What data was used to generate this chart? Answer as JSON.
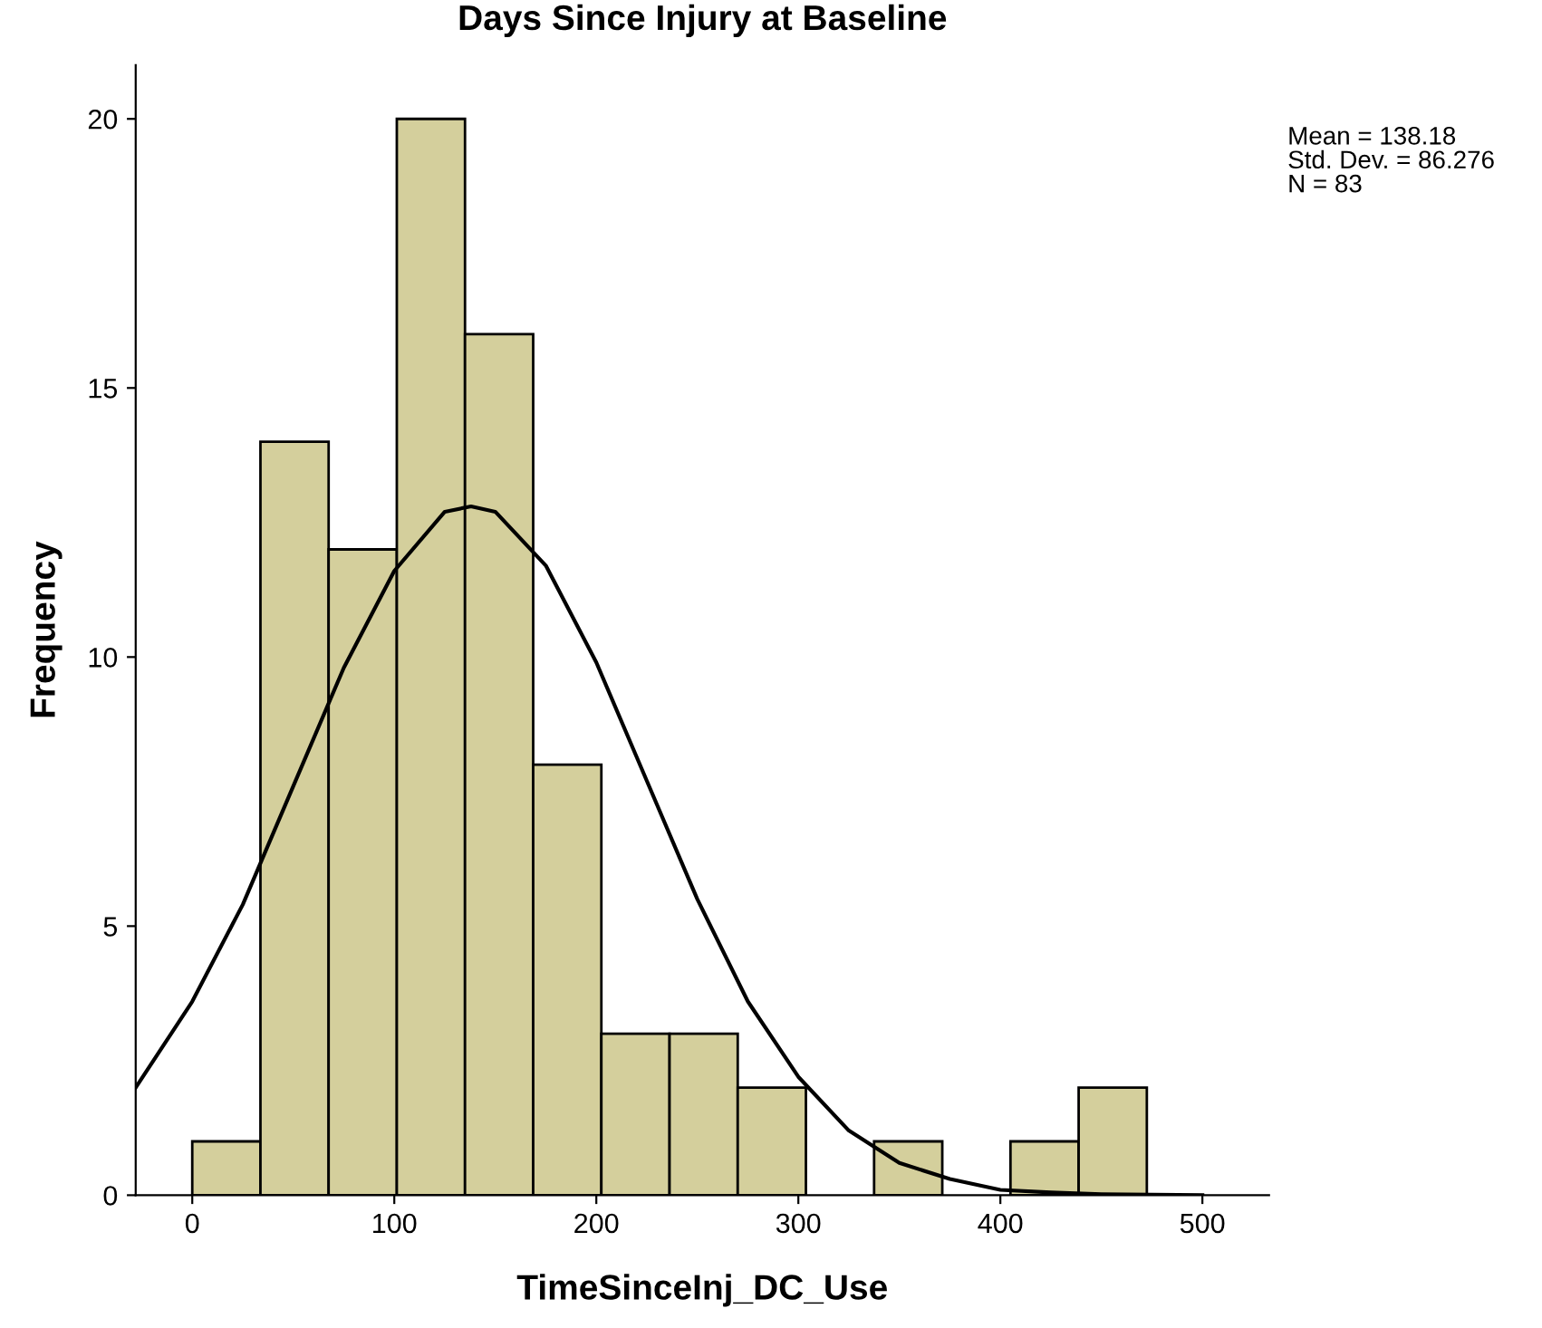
{
  "chart_data": {
    "type": "histogram",
    "title": "Days Since Injury at Baseline",
    "xlabel": "TimeSinceInj_DC_Use",
    "ylabel": "Frequency",
    "annotations": [
      "Mean = 138.18",
      "Std. Dev. = 86.276",
      "N = 83"
    ],
    "series": [
      {
        "color": "#d4cf9c",
        "bins": [
          0,
          33.75,
          67.5,
          101.25,
          135,
          168.75,
          202.5,
          236.25,
          270,
          303.75,
          337.5,
          371.25,
          405,
          438.75,
          472.5
        ],
        "values": [
          1,
          14,
          12,
          20,
          16,
          8,
          3,
          3,
          2,
          0,
          1,
          0,
          1,
          2
        ]
      },
      {
        "type": "line",
        "color": "#000000",
        "x": [
          -28,
          0,
          25,
          50,
          75,
          100,
          125,
          138,
          150,
          175,
          200,
          225,
          250,
          275,
          300,
          325,
          350,
          375,
          400,
          425,
          450,
          475,
          500
        ],
        "values": [
          2.0,
          3.6,
          5.4,
          7.6,
          9.8,
          11.6,
          12.7,
          12.8,
          12.7,
          11.7,
          9.9,
          7.7,
          5.5,
          3.6,
          2.2,
          1.2,
          0.6,
          0.3,
          0.1,
          0.05,
          0.02,
          0.01,
          0
        ]
      }
    ],
    "xlim": [
      -28,
      533
    ],
    "ylim": [
      0,
      21
    ],
    "xticks": [
      0,
      100,
      200,
      300,
      400,
      500
    ],
    "yticks": [
      0,
      5,
      10,
      15,
      20
    ],
    "grid": false,
    "legend": false
  }
}
